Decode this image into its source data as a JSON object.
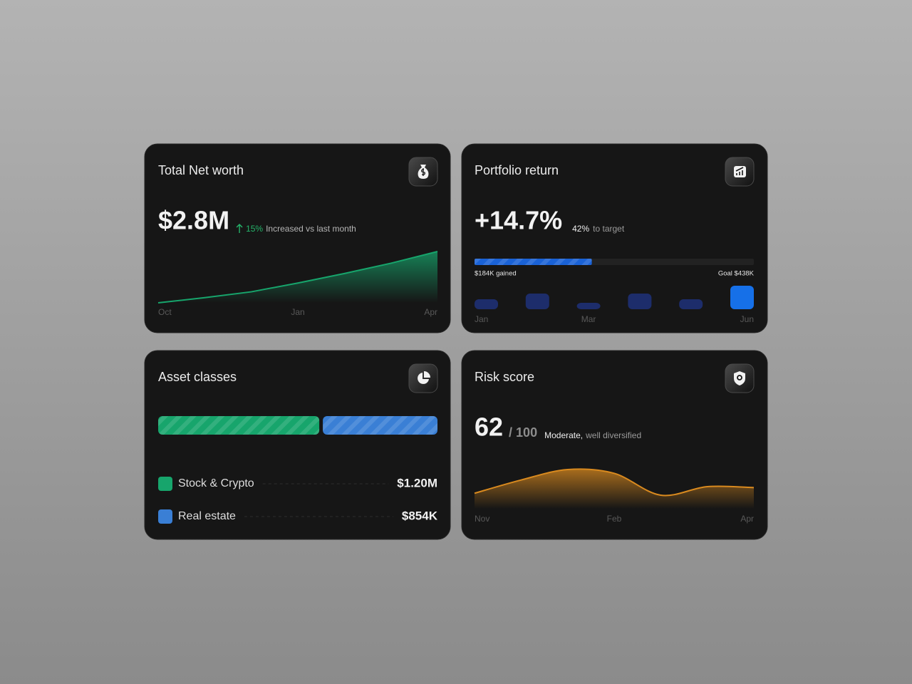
{
  "net_worth": {
    "title": "Total Net worth",
    "value": "$2.8M",
    "change": "15%",
    "change_text": "Increased vs last month",
    "chart": {
      "type": "area",
      "curve": "linear",
      "categories": [
        "Oct",
        null,
        null,
        "Jan",
        null,
        null,
        "Apr"
      ],
      "values": [
        2.1,
        2.17,
        2.25,
        2.37,
        2.5,
        2.64,
        2.8
      ],
      "color": "#17a56c"
    }
  },
  "portfolio": {
    "title": "Portfolio return",
    "value": "+14.7%",
    "progress": {
      "value": 42,
      "label": "42%"
    },
    "progress_text": "to target",
    "progress_color": "#1a62d6",
    "gained": "$184K gained",
    "goal": "Goal $438K",
    "chart": {
      "type": "bar",
      "categories": [
        "Jan",
        null,
        "Mar",
        null,
        null,
        "Jun"
      ],
      "values": [
        1.4,
        2.2,
        0.9,
        2.2,
        1.4,
        3.3
      ],
      "colors": [
        "#1d2d6b",
        "#1d2d6b",
        "#1d2d6b",
        "#1d2d6b",
        "#1d2d6b",
        "#1670e8"
      ]
    }
  },
  "assets": {
    "title": "Asset classes",
    "rows": [
      {
        "name": "Stock & Crypto",
        "value": 1200000,
        "value_label": "$1.20M",
        "color": "#17a56c"
      },
      {
        "name": "Real estate",
        "value": 854000,
        "value_label": "$854K",
        "color": "#3a7fd5"
      }
    ]
  },
  "risk": {
    "title": "Risk score",
    "score": 62,
    "scale": "/ 100",
    "rating": "Moderate,",
    "rating_text": "well diversified",
    "chart": {
      "type": "area",
      "curve": "smooth",
      "categories": [
        "Nov",
        null,
        null,
        "Feb",
        null,
        null,
        "Apr"
      ],
      "values": [
        12,
        26,
        37,
        33,
        10,
        19,
        18
      ],
      "color": "#d98a1f"
    }
  }
}
